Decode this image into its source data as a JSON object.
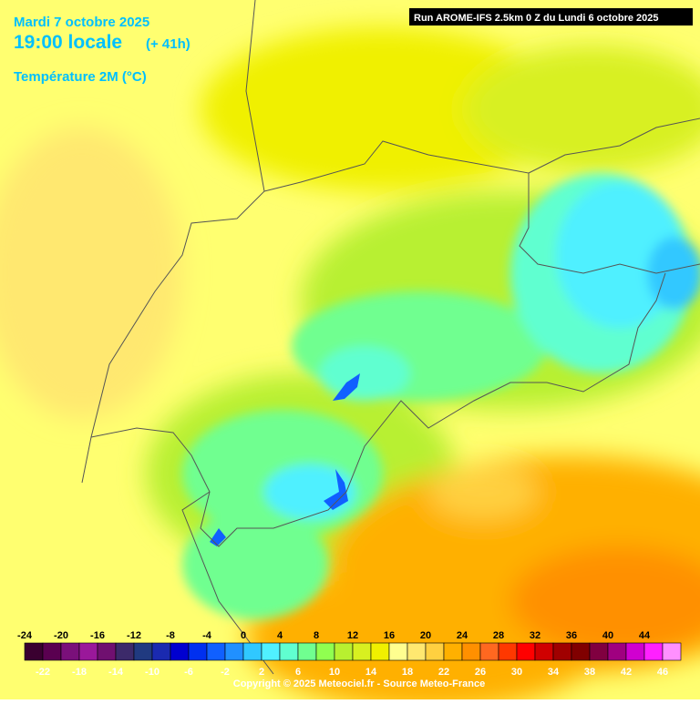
{
  "header": {
    "date": "Mardi 7 octobre 2025",
    "time": "19:00 locale",
    "lead": "(+ 41h)",
    "parameter": "Température 2M (°C)",
    "run": "Run AROME-IFS 2.5km 0 Z du Lundi 6 octobre 2025"
  },
  "legend": {
    "ticks": [
      -24,
      -22,
      -20,
      -18,
      -16,
      -14,
      -12,
      -10,
      -8,
      -6,
      -4,
      -2,
      0,
      2,
      4,
      6,
      8,
      10,
      12,
      14,
      16,
      18,
      20,
      22,
      24,
      26,
      28,
      30,
      32,
      34,
      36,
      38,
      40,
      42,
      44,
      46
    ],
    "colors": [
      "#3a0030",
      "#5a0050",
      "#7a107a",
      "#9a189a",
      "#701070",
      "#3c2a6a",
      "#203a80",
      "#1a2ab0",
      "#0000d0",
      "#0030f0",
      "#1060ff",
      "#2090ff",
      "#30c8ff",
      "#50f0ff",
      "#60ffd0",
      "#70ff90",
      "#90ff50",
      "#b8f030",
      "#d8f020",
      "#f0f000",
      "#ffff90",
      "#ffe870",
      "#ffd040",
      "#ffb000",
      "#ff9000",
      "#ff6820",
      "#ff3800",
      "#ff0000",
      "#d00000",
      "#a00000",
      "#800000",
      "#800040",
      "#a00080",
      "#d000d0",
      "#ff20ff",
      "#ff90ff"
    ]
  },
  "footer": {
    "copyright": "Copyright © 2025 Meteociel.fr - Source Meteo-France"
  }
}
